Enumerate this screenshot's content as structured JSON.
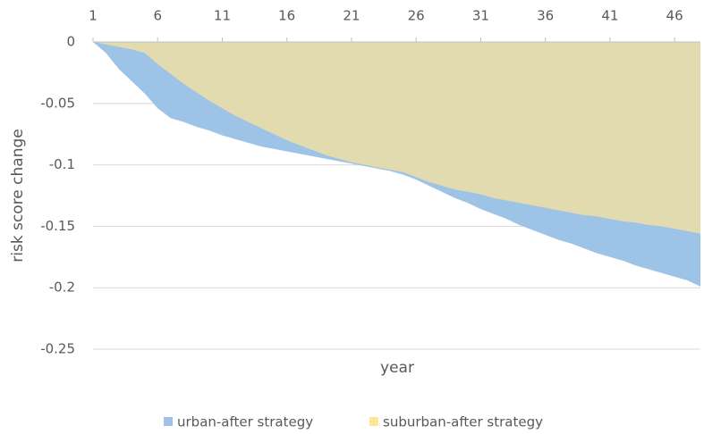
{
  "chart_data": {
    "type": "area",
    "x": [
      1,
      2,
      3,
      4,
      5,
      6,
      7,
      8,
      9,
      10,
      11,
      12,
      13,
      14,
      15,
      16,
      17,
      18,
      19,
      20,
      21,
      22,
      23,
      24,
      25,
      26,
      27,
      28,
      29,
      30,
      31,
      32,
      33,
      34,
      35,
      36,
      37,
      38,
      39,
      40,
      41,
      42,
      43,
      44,
      45,
      46,
      47,
      48
    ],
    "xlim": [
      1,
      48
    ],
    "xticks": [
      1,
      6,
      11,
      16,
      21,
      26,
      31,
      36,
      41,
      46
    ],
    "ylim": [
      -0.25,
      0
    ],
    "yticks": [
      0,
      -0.05,
      -0.1,
      -0.15,
      -0.2,
      -0.25
    ],
    "grid": true,
    "xlabel": "year",
    "ylabel": "risk score change",
    "legend": "bottom",
    "series": [
      {
        "name": "urban-after strategy",
        "color": "#9dc3e6",
        "values": [
          0,
          -0.009,
          -0.022,
          -0.032,
          -0.042,
          -0.054,
          -0.062,
          -0.065,
          -0.069,
          -0.072,
          -0.076,
          -0.079,
          -0.082,
          -0.085,
          -0.087,
          -0.089,
          -0.091,
          -0.093,
          -0.095,
          -0.097,
          -0.099,
          -0.101,
          -0.103,
          -0.105,
          -0.108,
          -0.112,
          -0.117,
          -0.122,
          -0.127,
          -0.131,
          -0.136,
          -0.14,
          -0.144,
          -0.149,
          -0.153,
          -0.157,
          -0.161,
          -0.164,
          -0.168,
          -0.172,
          -0.175,
          -0.178,
          -0.182,
          -0.185,
          -0.188,
          -0.191,
          -0.194,
          -0.199
        ]
      },
      {
        "name": "suburban-after strategy",
        "color": "#ffe699",
        "values": [
          0,
          -0.002,
          -0.004,
          -0.006,
          -0.009,
          -0.018,
          -0.026,
          -0.034,
          -0.041,
          -0.048,
          -0.054,
          -0.06,
          -0.065,
          -0.07,
          -0.075,
          -0.08,
          -0.084,
          -0.088,
          -0.092,
          -0.095,
          -0.098,
          -0.1,
          -0.102,
          -0.104,
          -0.106,
          -0.11,
          -0.114,
          -0.117,
          -0.12,
          -0.122,
          -0.124,
          -0.127,
          -0.129,
          -0.131,
          -0.133,
          -0.135,
          -0.137,
          -0.139,
          -0.141,
          -0.142,
          -0.144,
          -0.146,
          -0.147,
          -0.149,
          -0.15,
          -0.152,
          -0.154,
          -0.156
        ]
      }
    ]
  }
}
